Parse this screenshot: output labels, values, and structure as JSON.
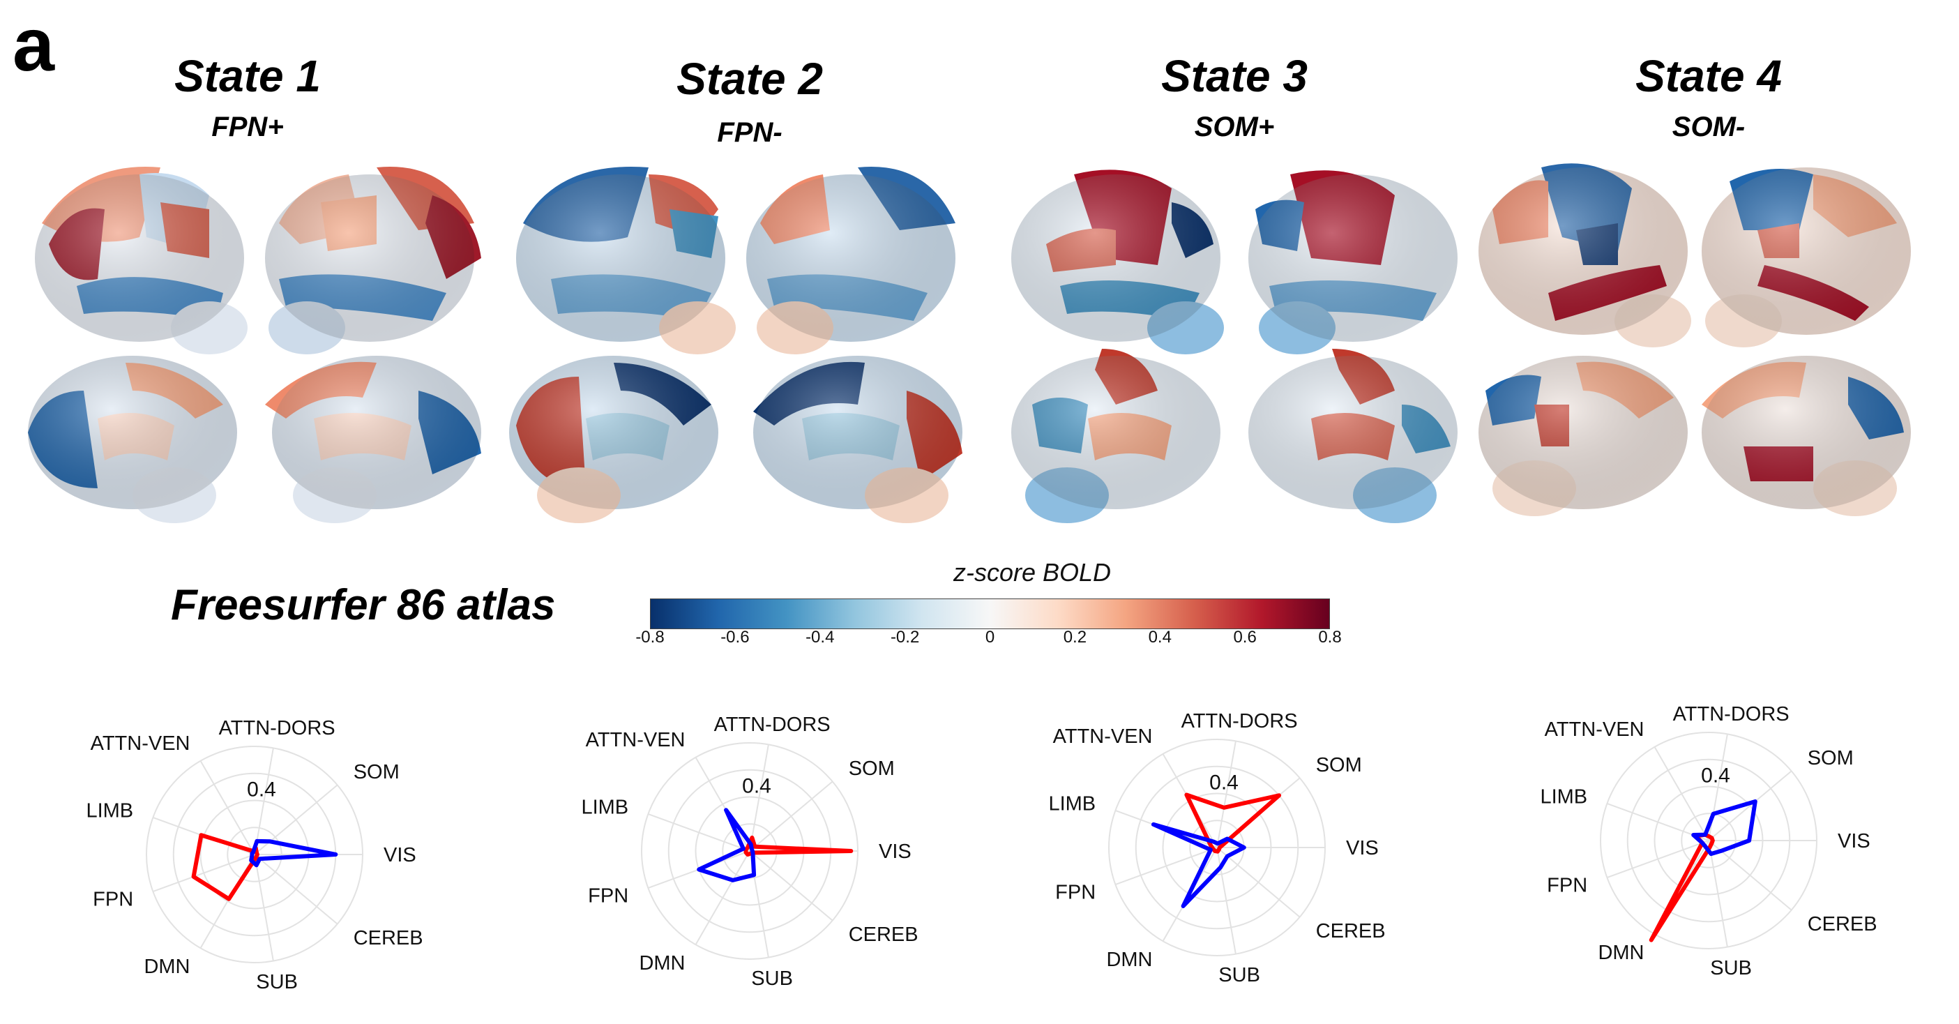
{
  "figure": {
    "panel_letter": "a",
    "atlas_label": "Freesurfer 86 atlas"
  },
  "states": [
    {
      "title": "State 1",
      "subtitle": "FPN+"
    },
    {
      "title": "State 2",
      "subtitle": "FPN-"
    },
    {
      "title": "State 3",
      "subtitle": "SOM+"
    },
    {
      "title": "State 4",
      "subtitle": "SOM-"
    }
  ],
  "colorbar": {
    "title": "z-score BOLD",
    "ticks": [
      "-0.8",
      "-0.6",
      "-0.4",
      "-0.2",
      "0",
      "0.2",
      "0.4",
      "0.6",
      "0.8"
    ],
    "colors": [
      "#08306b",
      "#2166ac",
      "#4393c3",
      "#92c5de",
      "#d1e5f0",
      "#f7f7f7",
      "#fddbc7",
      "#f4a582",
      "#d6604d",
      "#b2182b",
      "#67001f"
    ]
  },
  "chart_data": [
    {
      "type": "radar",
      "axes": [
        "VIS",
        "SOM",
        "ATTN-DORS",
        "ATTN-VEN",
        "LIMB",
        "FPN",
        "DMN",
        "SUB",
        "CEREB"
      ],
      "radial_tick_label": "0.4",
      "radial_max": 0.8,
      "series": [
        {
          "color": "#ff0000",
          "values": [
            0.02,
            0.02,
            0.05,
            0.03,
            0.42,
            0.48,
            0.38,
            0.03,
            0.02
          ]
        },
        {
          "color": "#0000ff",
          "values": [
            0.6,
            0.15,
            0.1,
            0.02,
            0.02,
            0.02,
            0.05,
            0.08,
            0.05
          ]
        }
      ]
    },
    {
      "type": "radar",
      "axes": [
        "VIS",
        "SOM",
        "ATTN-DORS",
        "ATTN-VEN",
        "LIMB",
        "FPN",
        "DMN",
        "SUB",
        "CEREB"
      ],
      "radial_tick_label": "0.4",
      "radial_max": 0.8,
      "series": [
        {
          "color": "#ff0000",
          "values": [
            0.75,
            0.05,
            0.1,
            0.03,
            0.03,
            0.03,
            0.03,
            0.02,
            0.02
          ]
        },
        {
          "color": "#0000ff",
          "values": [
            0.02,
            0.02,
            0.05,
            0.35,
            0.05,
            0.4,
            0.25,
            0.18,
            0.03
          ]
        }
      ]
    },
    {
      "type": "radar",
      "axes": [
        "VIS",
        "SOM",
        "ATTN-DORS",
        "ATTN-VEN",
        "LIMB",
        "FPN",
        "DMN",
        "SUB",
        "CEREB"
      ],
      "radial_tick_label": "0.4",
      "radial_max": 0.8,
      "series": [
        {
          "color": "#ff0000",
          "values": [
            0.02,
            0.6,
            0.3,
            0.45,
            0.05,
            0.03,
            0.03,
            0.03,
            0.02
          ]
        },
        {
          "color": "#0000ff",
          "values": [
            0.2,
            0.1,
            0.03,
            0.05,
            0.5,
            0.05,
            0.5,
            0.15,
            0.1
          ]
        }
      ]
    },
    {
      "type": "radar",
      "axes": [
        "VIS",
        "SOM",
        "ATTN-DORS",
        "ATTN-VEN",
        "LIMB",
        "FPN",
        "DMN",
        "SUB",
        "CEREB"
      ],
      "radial_tick_label": "0.4",
      "radial_max": 0.8,
      "series": [
        {
          "color": "#ff0000",
          "values": [
            0.03,
            0.03,
            0.03,
            0.05,
            0.1,
            0.05,
            0.85,
            0.05,
            0.03
          ]
        },
        {
          "color": "#0000ff",
          "values": [
            0.3,
            0.45,
            0.2,
            0.05,
            0.12,
            0.05,
            0.05,
            0.1,
            0.12
          ]
        }
      ]
    }
  ]
}
